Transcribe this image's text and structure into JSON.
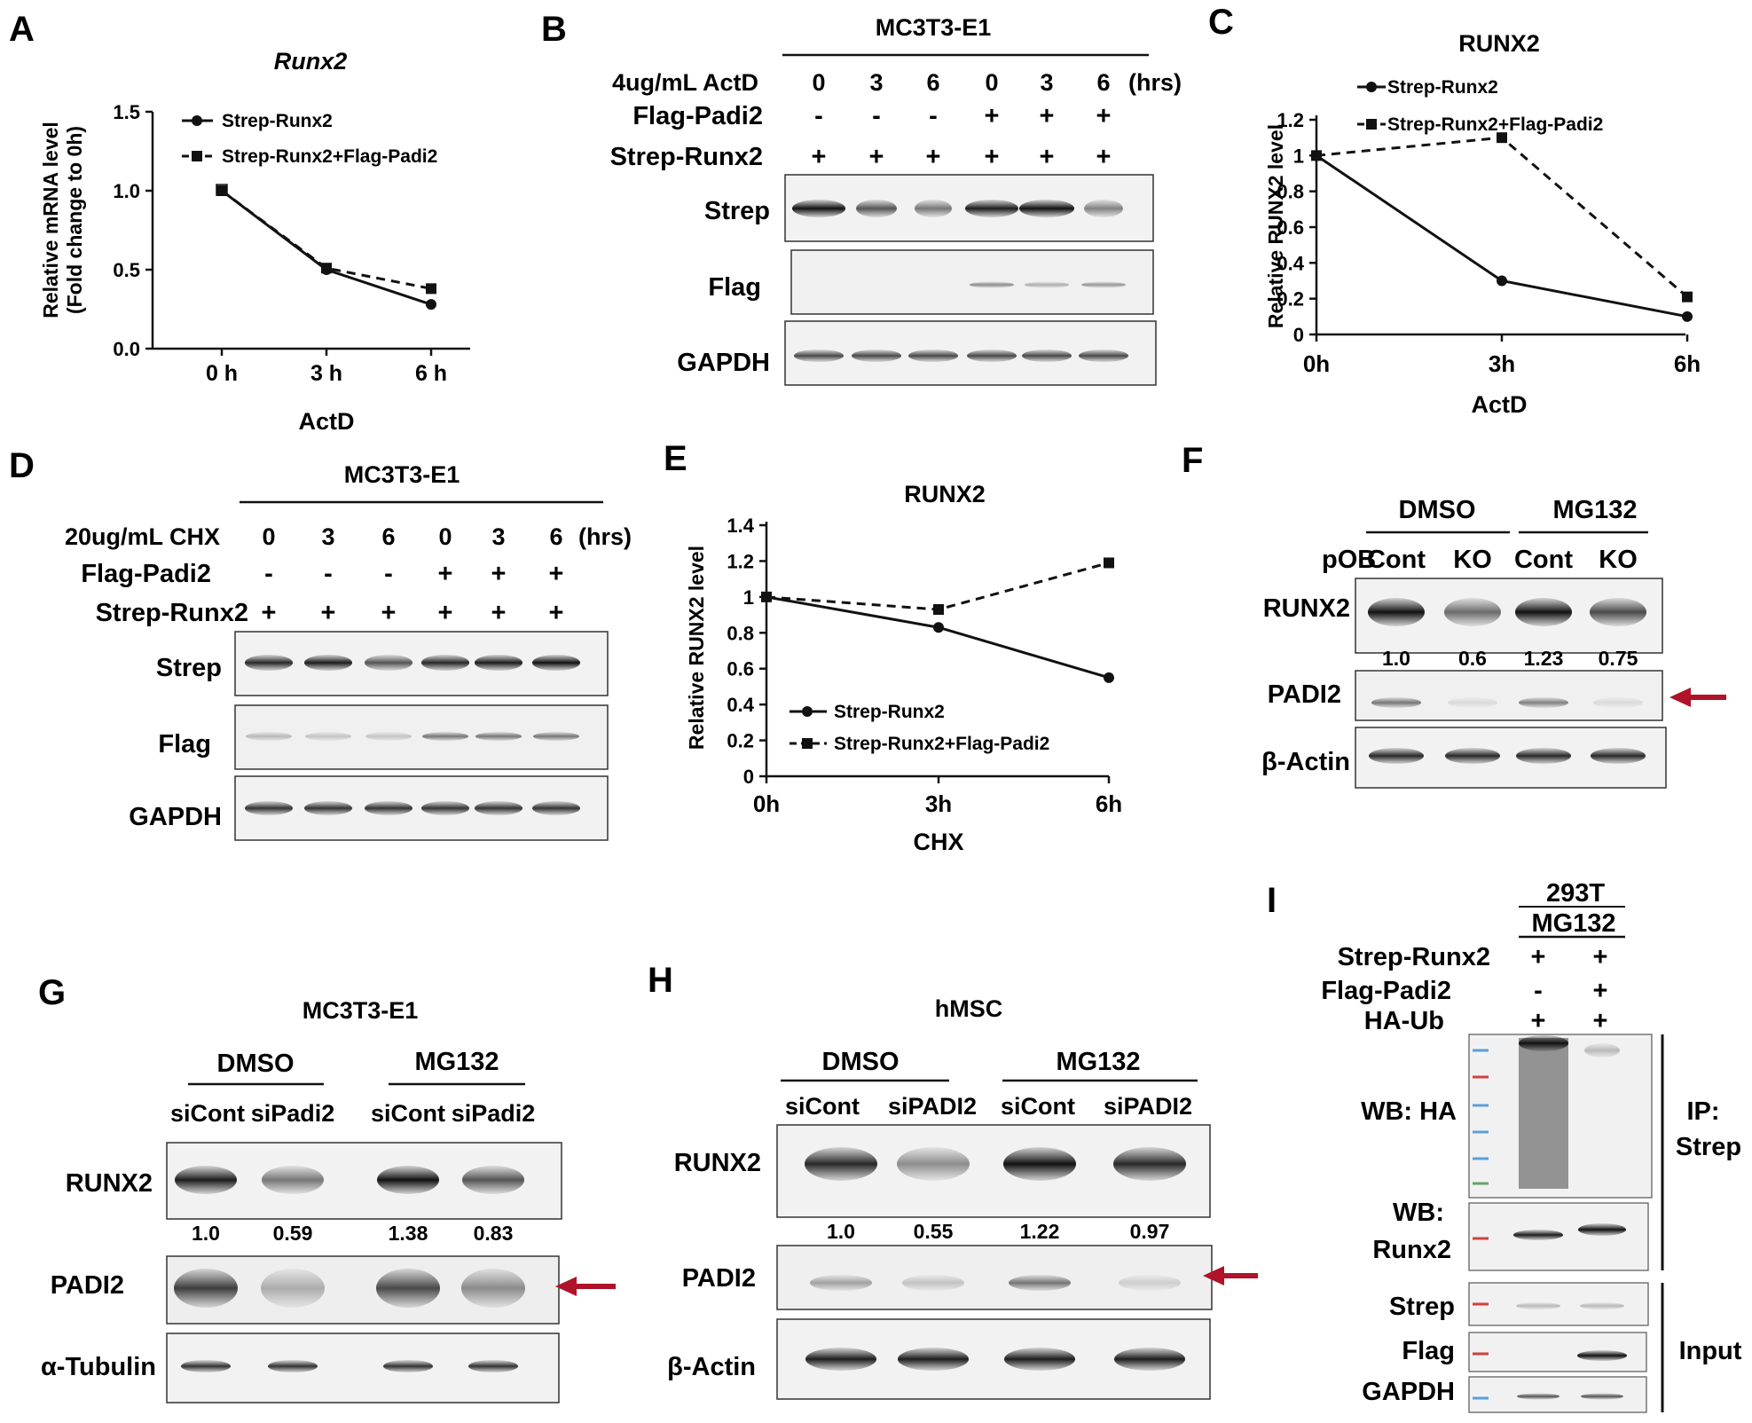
{
  "panels": {
    "A": {
      "letter": "A",
      "title": "Runx2",
      "ylabel_1": "Relative mRNA level",
      "ylabel_2": "(Fold change to 0h)",
      "xlabel": "ActD",
      "yticks": [
        "0.0",
        "0.5",
        "1.0",
        "1.5"
      ],
      "xticks": [
        "0 h",
        "3 h",
        "6 h"
      ],
      "legend": [
        "Strep-Runx2",
        "Strep-Runx2+Flag-Padi2"
      ]
    },
    "B": {
      "letter": "B",
      "cell_line": "MC3T3-E1",
      "treatment": "4ug/mL ActD",
      "times": [
        "0",
        "3",
        "6",
        "0",
        "3",
        "6"
      ],
      "unit": "(hrs)",
      "row_flag": "Flag-Padi2",
      "flag_signs": [
        "-",
        "-",
        "-",
        "+",
        "+",
        "+"
      ],
      "row_strep": "Strep-Runx2",
      "strep_signs": [
        "+",
        "+",
        "+",
        "+",
        "+",
        "+"
      ],
      "blots": [
        "Strep",
        "Flag",
        "GAPDH"
      ]
    },
    "C": {
      "letter": "C",
      "title": "RUNX2",
      "ylabel": "Relative RUNX2 level",
      "xlabel": "ActD",
      "yticks": [
        "0",
        "0.2",
        "0.4",
        "0.6",
        "0.8",
        "1",
        "1.2"
      ],
      "xticks": [
        "0h",
        "3h",
        "6h"
      ],
      "legend": [
        "Strep-Runx2",
        "Strep-Runx2+Flag-Padi2"
      ]
    },
    "D": {
      "letter": "D",
      "cell_line": "MC3T3-E1",
      "treatment": "20ug/mL CHX",
      "times": [
        "0",
        "3",
        "6",
        "0",
        "3",
        "6"
      ],
      "unit": "(hrs)",
      "row_flag": "Flag-Padi2",
      "flag_signs": [
        "-",
        "-",
        "-",
        "+",
        "+",
        "+"
      ],
      "row_strep": "Strep-Runx2",
      "strep_signs": [
        "+",
        "+",
        "+",
        "+",
        "+",
        "+"
      ],
      "blots": [
        "Strep",
        "Flag",
        "GAPDH"
      ]
    },
    "E": {
      "letter": "E",
      "title": "RUNX2",
      "ylabel": "Relative RUNX2 level",
      "xlabel": "CHX",
      "yticks": [
        "0",
        "0.2",
        "0.4",
        "0.6",
        "0.8",
        "1",
        "1.2",
        "1.4"
      ],
      "xticks": [
        "0h",
        "3h",
        "6h"
      ],
      "legend": [
        "Strep-Runx2",
        "Strep-Runx2+Flag-Padi2"
      ]
    },
    "F": {
      "letter": "F",
      "group1": "DMSO",
      "group2": "MG132",
      "row_label": "pOB",
      "lanes": [
        "Cont",
        "KO",
        "Cont",
        "KO"
      ],
      "blots": [
        "RUNX2",
        "PADI2",
        "β-Actin"
      ],
      "quant": [
        "1.0",
        "0.6",
        "1.23",
        "0.75"
      ]
    },
    "G": {
      "letter": "G",
      "cell_line": "MC3T3-E1",
      "group1": "DMSO",
      "group2": "MG132",
      "lanes": [
        "siCont",
        "siPadi2",
        "siCont",
        "siPadi2"
      ],
      "blots": [
        "RUNX2",
        "PADI2",
        "α-Tubulin"
      ],
      "quant": [
        "1.0",
        "0.59",
        "1.38",
        "0.83"
      ]
    },
    "H": {
      "letter": "H",
      "cell_line": "hMSC",
      "group1": "DMSO",
      "group2": "MG132",
      "lanes": [
        "siCont",
        "siPADI2",
        "siCont",
        "siPADI2"
      ],
      "blots": [
        "RUNX2",
        "PADI2",
        "β-Actin"
      ],
      "quant": [
        "1.0",
        "0.55",
        "1.22",
        "0.97"
      ]
    },
    "I": {
      "letter": "I",
      "cell_line": "293T",
      "treatment": "MG132",
      "rows": [
        "Strep-Runx2",
        "Flag-Padi2",
        "HA-Ub"
      ],
      "signs": [
        [
          "+",
          "+"
        ],
        [
          "-",
          "+"
        ],
        [
          "+",
          "+"
        ]
      ],
      "wb_ha": "WB: HA",
      "wb_runx2_1": "WB:",
      "wb_runx2_2": "Runx2",
      "ip_1": "IP:",
      "ip_2": "Strep",
      "input_blots": [
        "Strep",
        "Flag",
        "GAPDH"
      ],
      "input_label": "Input"
    }
  },
  "chart_data": [
    {
      "panel": "A",
      "type": "line",
      "title": "Runx2",
      "xlabel": "ActD",
      "ylabel": "Relative mRNA level (Fold change to 0h)",
      "categories": [
        "0 h",
        "3 h",
        "6 h"
      ],
      "ylim": [
        0,
        1.5
      ],
      "series": [
        {
          "name": "Strep-Runx2",
          "values": [
            1.0,
            0.5,
            0.28
          ],
          "marker": "circle",
          "style": "solid"
        },
        {
          "name": "Strep-Runx2+Flag-Padi2",
          "values": [
            1.0,
            0.51,
            0.38
          ],
          "marker": "square",
          "style": "dashed"
        }
      ],
      "legend": "top-left",
      "grid": false
    },
    {
      "panel": "C",
      "type": "line",
      "title": "RUNX2",
      "xlabel": "ActD",
      "ylabel": "Relative RUNX2 level",
      "categories": [
        "0h",
        "3h",
        "6h"
      ],
      "ylim": [
        0,
        1.2
      ],
      "series": [
        {
          "name": "Strep-Runx2",
          "values": [
            1.0,
            0.3,
            0.1
          ],
          "marker": "circle",
          "style": "solid"
        },
        {
          "name": "Strep-Runx2+Flag-Padi2",
          "values": [
            1.0,
            1.1,
            0.21
          ],
          "marker": "square",
          "style": "dashed"
        }
      ],
      "legend": "top-left",
      "grid": false
    },
    {
      "panel": "E",
      "type": "line",
      "title": "RUNX2",
      "xlabel": "CHX",
      "ylabel": "Relative RUNX2 level",
      "categories": [
        "0h",
        "3h",
        "6h"
      ],
      "ylim": [
        0,
        1.4
      ],
      "series": [
        {
          "name": "Strep-Runx2",
          "values": [
            1.0,
            0.83,
            0.55
          ],
          "marker": "circle",
          "style": "solid"
        },
        {
          "name": "Strep-Runx2+Flag-Padi2",
          "values": [
            1.0,
            0.93,
            1.19
          ],
          "marker": "square",
          "style": "dashed"
        }
      ],
      "legend": "bottom-left",
      "grid": false
    }
  ],
  "colors": {
    "arrow": "#b0122a",
    "ink": "#111111"
  }
}
